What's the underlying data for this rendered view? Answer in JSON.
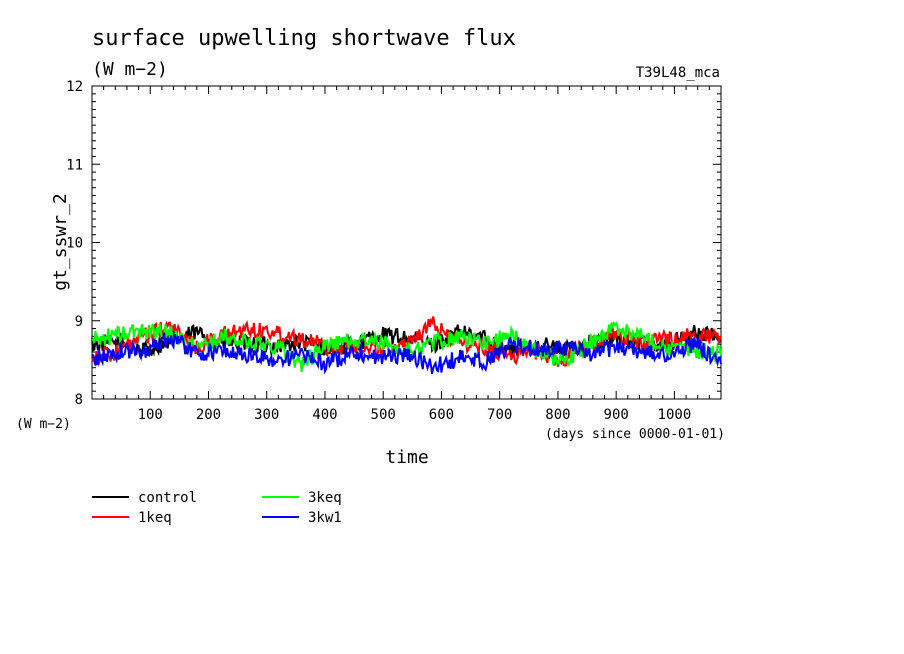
{
  "chart_data": {
    "type": "line",
    "title": "surface upwelling shortwave flux",
    "title_units": "(W m−2)",
    "run_label": "T39L48_mca",
    "ylabel": "gt_sswr_2",
    "y_units": "(W m−2)",
    "xlabel": "time",
    "x_units": "(days since 0000-01-01)",
    "xlim": [
      0,
      1080
    ],
    "ylim": [
      8,
      12
    ],
    "x_ticks": [
      100,
      200,
      300,
      400,
      500,
      600,
      700,
      800,
      900,
      1000
    ],
    "y_ticks": [
      8,
      9,
      10,
      11,
      12
    ],
    "x": [
      0,
      45,
      90,
      135,
      180,
      225,
      270,
      315,
      360,
      405,
      450,
      495,
      540,
      585,
      630,
      675,
      720,
      765,
      810,
      855,
      900,
      945,
      990,
      1035,
      1080
    ],
    "series": [
      {
        "name": "control",
        "color": "#000000",
        "values": [
          8.7,
          8.72,
          8.62,
          8.75,
          8.85,
          8.72,
          8.7,
          8.68,
          8.72,
          8.65,
          8.7,
          8.82,
          8.78,
          8.7,
          8.85,
          8.78,
          8.62,
          8.72,
          8.62,
          8.72,
          8.76,
          8.7,
          8.7,
          8.85,
          8.78
        ]
      },
      {
        "name": "1keq",
        "color": "#ff0000",
        "values": [
          8.55,
          8.6,
          8.8,
          8.92,
          8.65,
          8.82,
          8.9,
          8.85,
          8.78,
          8.65,
          8.7,
          8.62,
          8.72,
          8.95,
          8.72,
          8.65,
          8.55,
          8.62,
          8.48,
          8.7,
          8.82,
          8.72,
          8.78,
          8.8,
          8.82
        ]
      },
      {
        "name": "3keq",
        "color": "#00ff00",
        "values": [
          8.75,
          8.82,
          8.88,
          8.85,
          8.65,
          8.78,
          8.72,
          8.68,
          8.45,
          8.7,
          8.75,
          8.72,
          8.6,
          8.72,
          8.8,
          8.72,
          8.8,
          8.62,
          8.48,
          8.72,
          8.92,
          8.8,
          8.65,
          8.62,
          8.58
        ]
      },
      {
        "name": "3kw1",
        "color": "#0000ff",
        "values": [
          8.5,
          8.6,
          8.62,
          8.8,
          8.58,
          8.62,
          8.55,
          8.5,
          8.55,
          8.45,
          8.62,
          8.52,
          8.58,
          8.4,
          8.52,
          8.48,
          8.7,
          8.62,
          8.68,
          8.55,
          8.68,
          8.6,
          8.55,
          8.72,
          8.42
        ]
      }
    ],
    "legend_position": "below-left"
  }
}
